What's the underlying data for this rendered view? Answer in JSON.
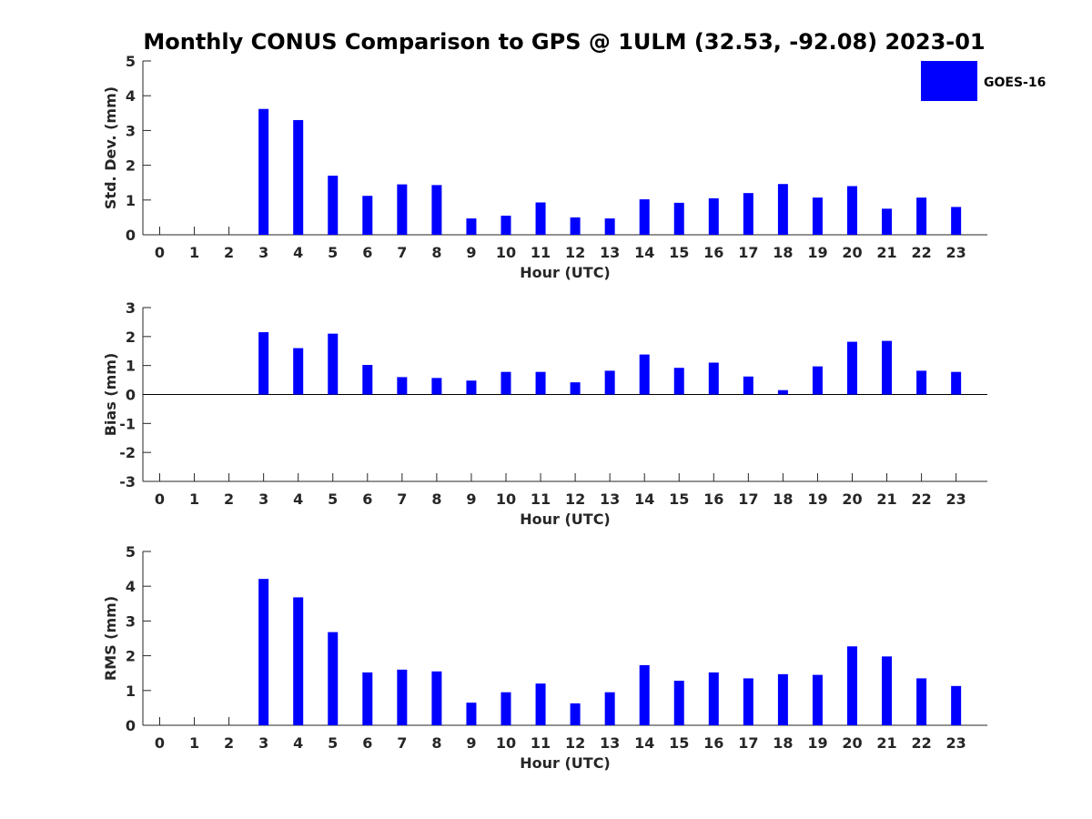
{
  "figure": {
    "title": "Monthly CONUS Comparison to GPS @ 1ULM (32.53, -92.08) 2023-01"
  },
  "legend": {
    "label": "GOES-16",
    "color": "#0000ff"
  },
  "chart_data": [
    {
      "type": "bar",
      "panel": "std-dev",
      "xlabel": "Hour (UTC)",
      "ylabel": "Std. Dev. (mm)",
      "ylim": [
        0,
        5
      ],
      "yticks": [
        0,
        1,
        2,
        3,
        4,
        5
      ],
      "categories": [
        "0",
        "1",
        "2",
        "3",
        "4",
        "5",
        "6",
        "7",
        "8",
        "9",
        "10",
        "11",
        "12",
        "13",
        "14",
        "15",
        "16",
        "17",
        "18",
        "19",
        "20",
        "21",
        "22",
        "23"
      ],
      "series": [
        {
          "name": "GOES-16",
          "values": [
            null,
            null,
            null,
            3.62,
            3.3,
            1.7,
            1.12,
            1.45,
            1.43,
            0.47,
            0.55,
            0.93,
            0.5,
            0.47,
            1.02,
            0.92,
            1.05,
            1.2,
            1.46,
            1.07,
            1.4,
            0.75,
            1.07,
            0.8
          ]
        }
      ]
    },
    {
      "type": "bar",
      "panel": "bias",
      "xlabel": "Hour (UTC)",
      "ylabel": "Bias (mm)",
      "ylim": [
        -3,
        3
      ],
      "yticks": [
        -3,
        -2,
        -1,
        0,
        1,
        2,
        3
      ],
      "categories": [
        "0",
        "1",
        "2",
        "3",
        "4",
        "5",
        "6",
        "7",
        "8",
        "9",
        "10",
        "11",
        "12",
        "13",
        "14",
        "15",
        "16",
        "17",
        "18",
        "19",
        "20",
        "21",
        "22",
        "23"
      ],
      "series": [
        {
          "name": "GOES-16",
          "values": [
            null,
            null,
            null,
            2.15,
            1.6,
            2.1,
            1.02,
            0.6,
            0.57,
            0.48,
            0.78,
            0.78,
            0.42,
            0.82,
            1.38,
            0.92,
            1.1,
            0.62,
            0.15,
            0.97,
            1.82,
            1.85,
            0.82,
            0.78
          ]
        }
      ]
    },
    {
      "type": "bar",
      "panel": "rms",
      "xlabel": "Hour (UTC)",
      "ylabel": "RMS (mm)",
      "ylim": [
        0,
        5
      ],
      "yticks": [
        0,
        1,
        2,
        3,
        4,
        5
      ],
      "categories": [
        "0",
        "1",
        "2",
        "3",
        "4",
        "5",
        "6",
        "7",
        "8",
        "9",
        "10",
        "11",
        "12",
        "13",
        "14",
        "15",
        "16",
        "17",
        "18",
        "19",
        "20",
        "21",
        "22",
        "23"
      ],
      "series": [
        {
          "name": "GOES-16",
          "values": [
            null,
            null,
            null,
            4.21,
            3.68,
            2.68,
            1.52,
            1.6,
            1.55,
            0.65,
            0.95,
            1.2,
            0.63,
            0.95,
            1.73,
            1.28,
            1.52,
            1.35,
            1.47,
            1.45,
            2.27,
            1.98,
            1.35,
            1.13
          ]
        }
      ]
    }
  ]
}
